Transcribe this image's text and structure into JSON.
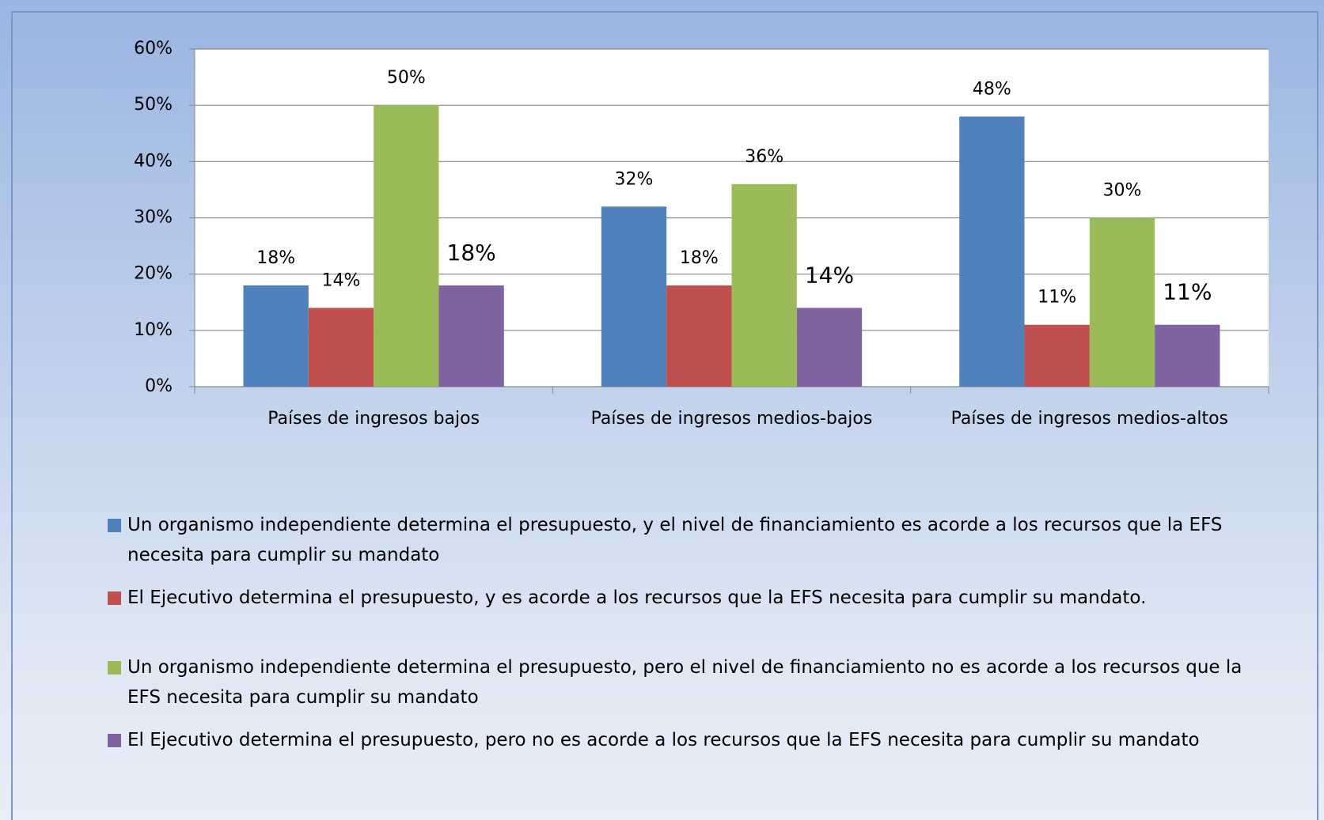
{
  "chart_data": {
    "type": "bar",
    "categories": [
      "Países de ingresos bajos",
      "Países de ingresos medios-bajos",
      "Países de ingresos medios-altos"
    ],
    "series": [
      {
        "name": "Un organismo independiente determina el presupuesto, y el nivel de financiamiento es acorde a los recursos que la EFS necesita para cumplir su mandato",
        "color": "#4f81bd",
        "values": [
          18,
          32,
          48
        ],
        "value_labels": [
          "18%",
          "32%",
          "48%"
        ]
      },
      {
        "name": "El Ejecutivo determina el presupuesto, y es acorde a los recursos que la EFS necesita para cumplir su mandato.",
        "color": "#c0504d",
        "values": [
          14,
          18,
          11
        ],
        "value_labels": [
          "14%",
          "18%",
          "11%"
        ]
      },
      {
        "name": "Un organismo independiente determina el presupuesto, pero el nivel de financiamiento no es acorde a los recursos que la EFS necesita para cumplir su mandato",
        "color": "#9bbb59",
        "values": [
          50,
          36,
          30
        ],
        "value_labels": [
          "50%",
          "36%",
          "30%"
        ]
      },
      {
        "name": "El Ejecutivo determina el presupuesto, pero no es acorde a los recursos que la EFS necesita para cumplir su mandato",
        "color": "#8064a2",
        "values": [
          18,
          14,
          11
        ],
        "value_labels": [
          "18%",
          "14%",
          "11%"
        ]
      }
    ],
    "ylim": [
      0,
      60
    ],
    "yticks": [
      {
        "value": 0,
        "label": "0%"
      },
      {
        "value": 10,
        "label": "10%"
      },
      {
        "value": 20,
        "label": "20%"
      },
      {
        "value": 30,
        "label": "30%"
      },
      {
        "value": 40,
        "label": "40%"
      },
      {
        "value": 50,
        "label": "50%"
      },
      {
        "value": 60,
        "label": "60%"
      }
    ],
    "grid": true
  }
}
